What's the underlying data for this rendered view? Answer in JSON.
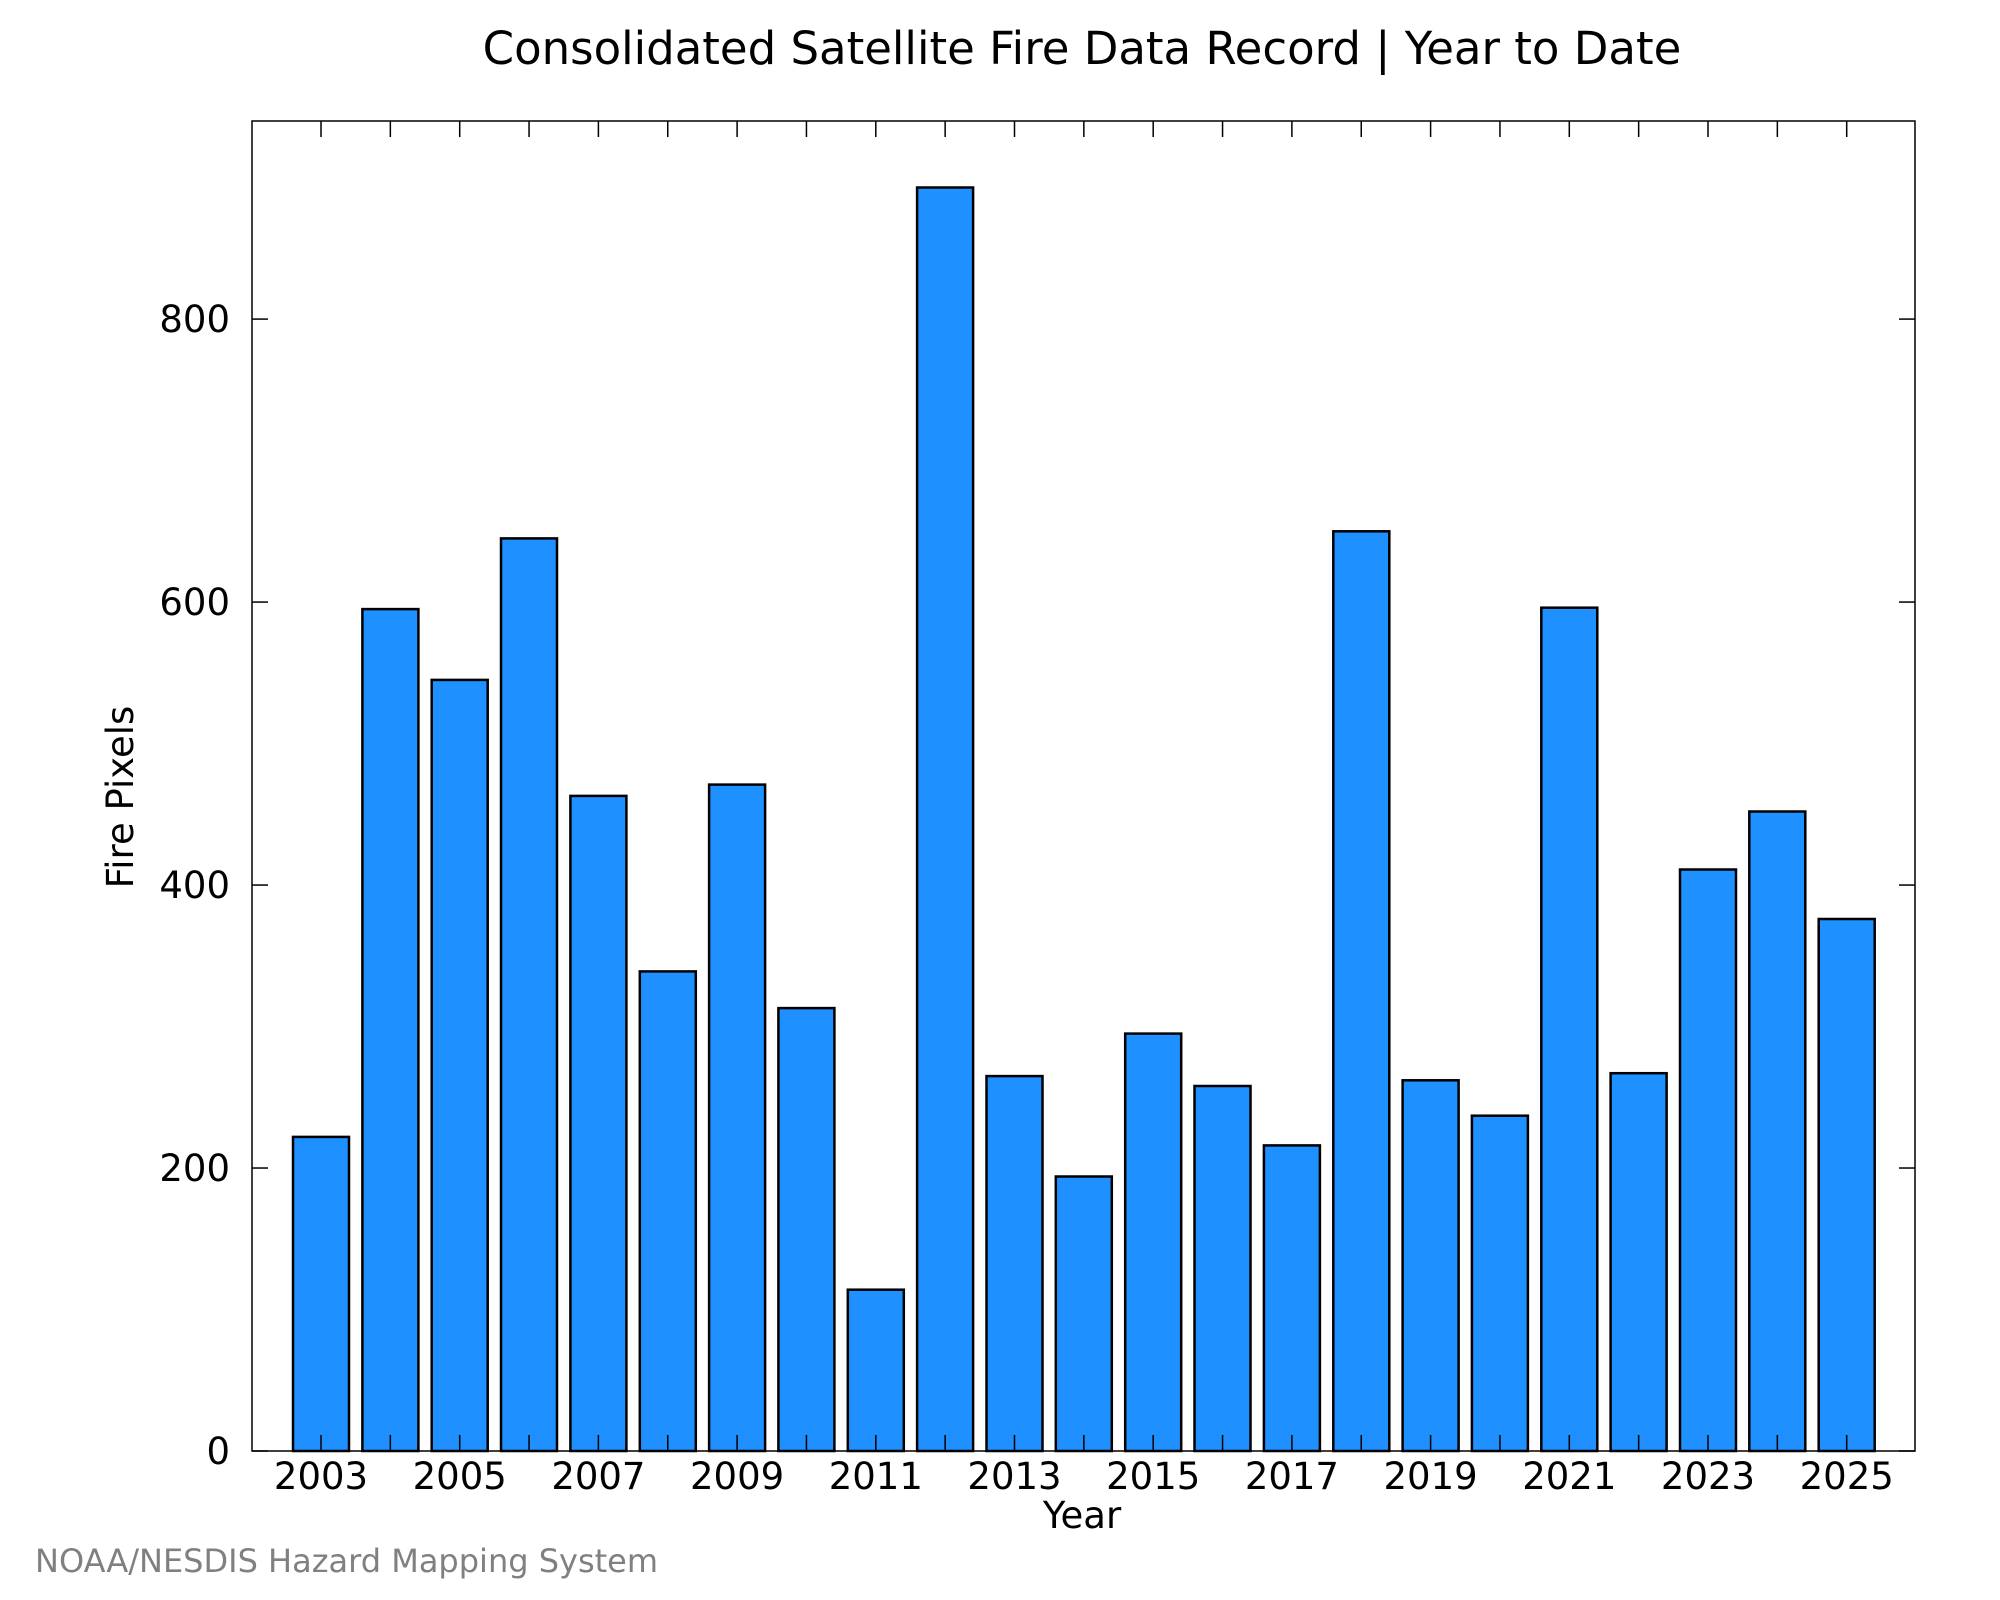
{
  "chart_data": {
    "type": "bar",
    "title": "Consolidated Satellite Fire Data Record | Year to Date",
    "xlabel": "Year",
    "ylabel": "Fire Pixels",
    "categories": [
      "2003",
      "2004",
      "2005",
      "2006",
      "2007",
      "2008",
      "2009",
      "2010",
      "2011",
      "2012",
      "2013",
      "2014",
      "2015",
      "2016",
      "2017",
      "2018",
      "2019",
      "2020",
      "2021",
      "2022",
      "2023",
      "2024",
      "2025"
    ],
    "x_tick_labels": [
      "2003",
      "2005",
      "2007",
      "2009",
      "2011",
      "2013",
      "2015",
      "2017",
      "2019",
      "2021",
      "2023",
      "2025"
    ],
    "y_ticks": [
      0,
      200,
      400,
      600,
      800
    ],
    "y_tick_labels": [
      "0",
      "200",
      "400",
      "600",
      "800"
    ],
    "values": [
      222,
      595,
      545,
      645,
      463,
      339,
      471,
      313,
      114,
      893,
      265,
      194,
      295,
      258,
      216,
      650,
      262,
      237,
      596,
      267,
      411,
      452,
      376
    ],
    "ylim": [
      0,
      940
    ],
    "grid": false,
    "legend": "none",
    "bar_color": "#1E90FF",
    "bar_edge_color": "#000000"
  },
  "footer": {
    "credit": "NOAA/NESDIS Hazard Mapping System"
  }
}
